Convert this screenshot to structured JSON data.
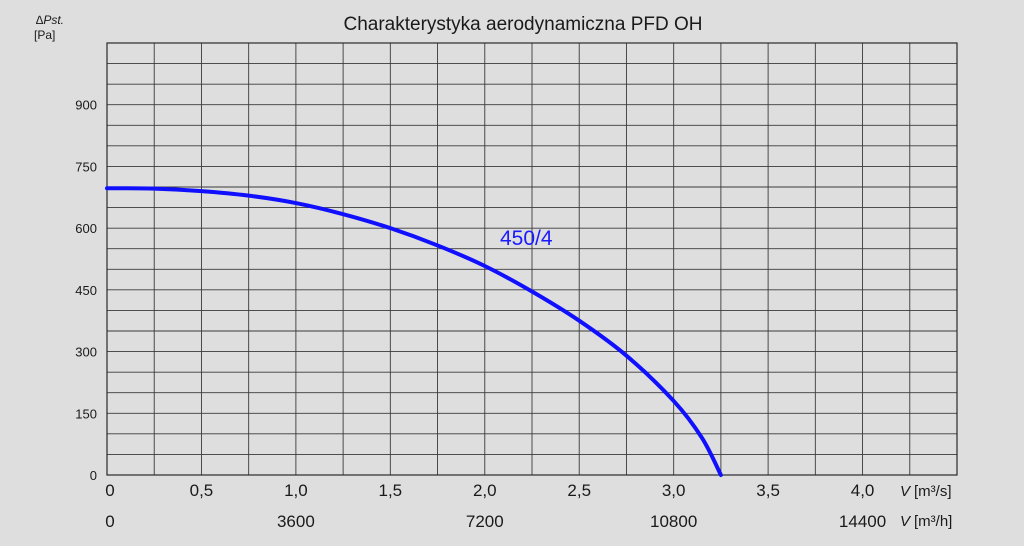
{
  "chart_data": {
    "type": "line",
    "title": "Charakterystyka aerodynamiczna PFD OH",
    "ylabel": "∆Pst.",
    "ylabel_unit": "[Pa]",
    "ylim": [
      0,
      1050
    ],
    "y_ticks": [
      "900",
      "750",
      "600",
      "450",
      "300",
      "150",
      "0"
    ],
    "xlim": [
      0,
      4.5
    ],
    "x_ticks": [
      "0",
      "0,5",
      "1,0",
      "1,5",
      "2,0",
      "2,5",
      "3,0",
      "3,5",
      "4,0"
    ],
    "xlabel": "V",
    "xlabel_unit": "[m³/s]",
    "x2_ticks": [
      "0",
      "3600",
      "7200",
      "10800",
      "14400"
    ],
    "x2label": "V",
    "x2label_unit": "[m³/h]",
    "grid": true,
    "series": [
      {
        "name": "450/4",
        "color": "#1010ff",
        "x": [
          0,
          0.25,
          0.5,
          0.75,
          1.0,
          1.25,
          1.5,
          1.75,
          2.0,
          2.25,
          2.5,
          2.75,
          3.0,
          3.15,
          3.25
        ],
        "y": [
          697,
          696,
          690,
          679,
          661,
          634,
          600,
          558,
          508,
          446,
          375,
          290,
          180,
          90,
          0
        ]
      }
    ]
  }
}
